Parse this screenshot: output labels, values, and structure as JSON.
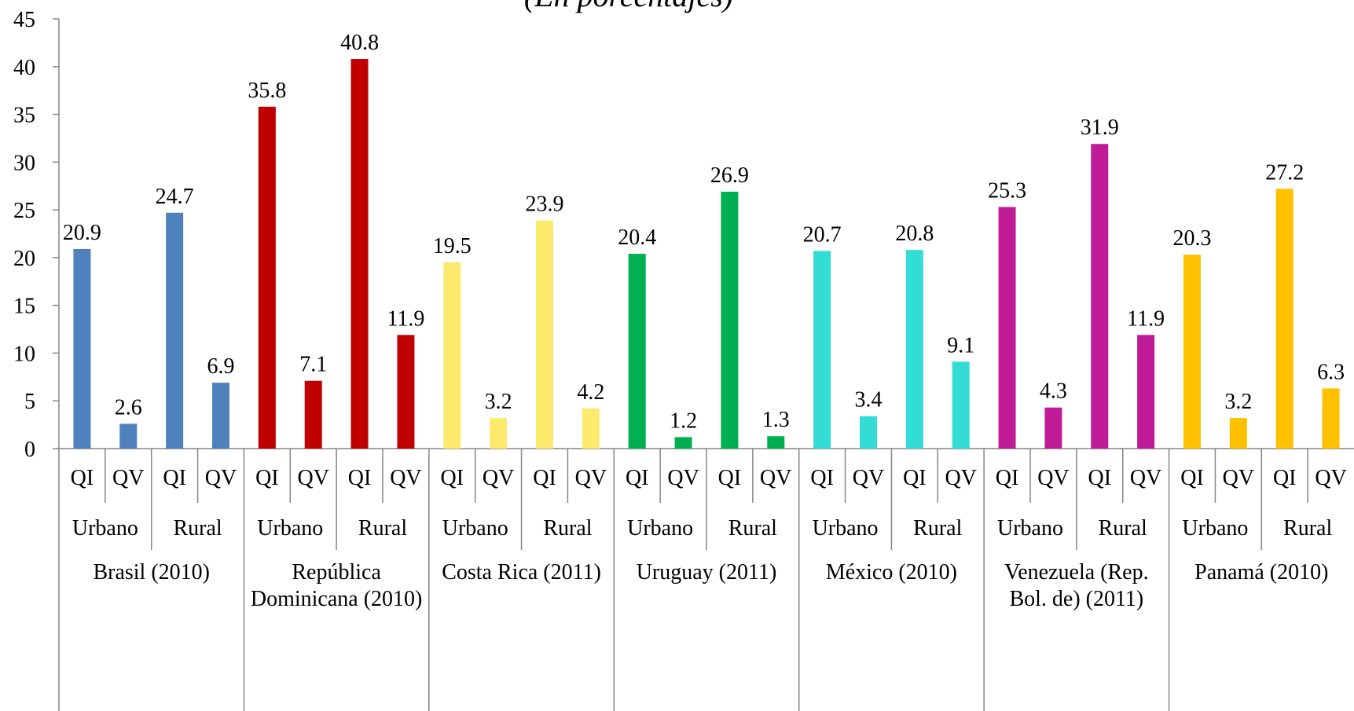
{
  "chart_data": {
    "type": "bar",
    "subtitle": "(En porcentajes)",
    "categories": [
      "QI",
      "QV",
      "QI",
      "QV",
      "QI",
      "QV",
      "QI",
      "QV",
      "QI",
      "QV",
      "QI",
      "QV",
      "QI",
      "QV",
      "QI",
      "QV",
      "QI",
      "QV",
      "QI",
      "QV",
      "QI",
      "QV",
      "QI",
      "QV",
      "QI",
      "QV",
      "QI",
      "QV"
    ],
    "subgroups": [
      "Urbano",
      "Rural",
      "Urbano",
      "Rural",
      "Urbano",
      "Rural",
      "Urbano",
      "Rural",
      "Urbano",
      "Rural",
      "Urbano",
      "Rural",
      "Urbano",
      "Rural"
    ],
    "groups": [
      "Brasil (2010)",
      "República Dominicana (2010)",
      "Costa Rica (2011)",
      "Uruguay (2011)",
      "México (2010)",
      "Venezuela (Rep. Bol. de) (2011)",
      "Panamá (2010)"
    ],
    "group_colors": [
      "#4f81bd",
      "#c00000",
      "#fde96c",
      "#00b050",
      "#33dcd5",
      "#bf1b96",
      "#ffc000"
    ],
    "values": [
      20.9,
      2.6,
      24.7,
      6.9,
      35.8,
      7.1,
      40.8,
      11.9,
      19.5,
      3.2,
      23.9,
      4.2,
      20.4,
      1.2,
      26.9,
      1.3,
      20.7,
      3.4,
      20.8,
      9.1,
      25.3,
      4.3,
      31.9,
      11.9,
      20.3,
      3.2,
      27.2,
      6.3
    ],
    "ylim": [
      0,
      45
    ],
    "yticks": [
      0,
      5,
      10,
      15,
      20,
      25,
      30,
      35,
      40,
      45
    ]
  }
}
